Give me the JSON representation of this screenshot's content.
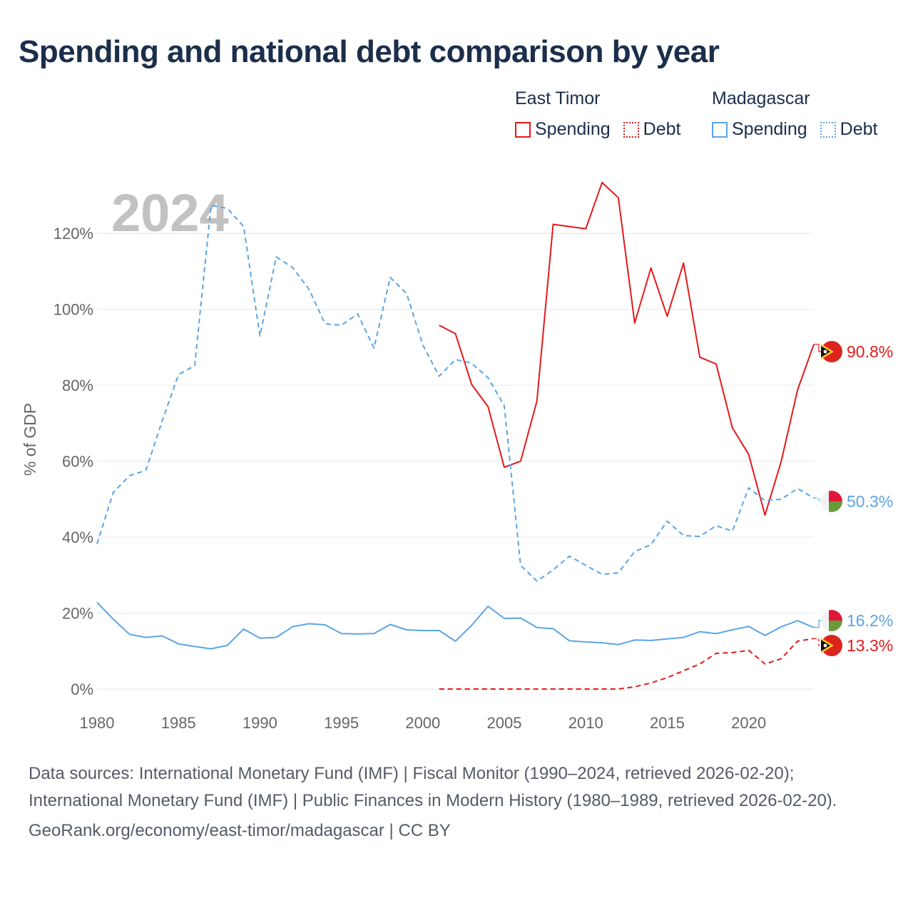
{
  "title": "Spending and national debt comparison by year",
  "legend": {
    "groups": [
      {
        "country": "East Timor",
        "items": [
          "Spending",
          "Debt"
        ]
      },
      {
        "country": "Madagascar",
        "items": [
          "Spending",
          "Debt"
        ]
      }
    ]
  },
  "colors": {
    "east_timor": "#e31a1c",
    "madagascar": "#5aa5e6",
    "grid": "#e6e6e6",
    "axis_text": "#666666",
    "year_watermark": "#c2c2c2"
  },
  "footer": {
    "sources": "Data sources: International Monetary Fund (IMF) | Fiscal Monitor (1990–2024, retrieved 2026-02-20); International Monetary Fund (IMF) | Public Finances in Modern History (1980–1989, retrieved 2026-02-20).",
    "credit": "GeoRank.org/economy/east-timor/madagascar | CC BY"
  },
  "chart_data": {
    "type": "line",
    "year_label": "2024",
    "ylabel": "% of GDP",
    "xlabel": "",
    "xlim": [
      1980,
      2024
    ],
    "ylim": [
      0,
      130
    ],
    "x_ticks": [
      1980,
      1985,
      1990,
      1995,
      2000,
      2005,
      2010,
      2015,
      2020
    ],
    "y_ticks": [
      0,
      20,
      40,
      60,
      80,
      100,
      120
    ],
    "y_tick_labels": [
      "0%",
      "20%",
      "40%",
      "60%",
      "80%",
      "100%",
      "120%"
    ],
    "series": [
      {
        "name": "East Timor Spending",
        "country": "East Timor",
        "style": "solid",
        "color": "#e31a1c",
        "end_label": "90.8%",
        "x": [
          2001,
          2002,
          2003,
          2004,
          2005,
          2006,
          2007,
          2008,
          2009,
          2010,
          2011,
          2012,
          2013,
          2014,
          2015,
          2016,
          2017,
          2018,
          2019,
          2020,
          2021,
          2022,
          2023,
          2024
        ],
        "values": [
          95.8,
          93.6,
          80.2,
          74.4,
          58.4,
          60.0,
          75.8,
          122.4,
          121.8,
          121.2,
          133.4,
          129.4,
          96.4,
          110.9,
          98.2,
          112.2,
          87.4,
          85.6,
          68.8,
          61.8,
          45.8,
          60.0,
          78.8,
          90.8
        ]
      },
      {
        "name": "East Timor Debt",
        "country": "East Timor",
        "style": "dashed",
        "color": "#e31a1c",
        "end_label": "13.3%",
        "x": [
          2001,
          2002,
          2003,
          2004,
          2005,
          2006,
          2007,
          2008,
          2009,
          2010,
          2011,
          2012,
          2013,
          2014,
          2015,
          2016,
          2017,
          2018,
          2019,
          2020,
          2021,
          2022,
          2023,
          2024
        ],
        "values": [
          0,
          0,
          0,
          0,
          0,
          0,
          0,
          0,
          0,
          0,
          0,
          0,
          0.6,
          1.6,
          3.0,
          4.8,
          6.6,
          9.4,
          9.6,
          10.2,
          6.6,
          8.0,
          12.6,
          13.3
        ]
      },
      {
        "name": "Madagascar Spending",
        "country": "Madagascar",
        "style": "solid",
        "color": "#5aa5e6",
        "end_label": "16.2%",
        "x": [
          1980,
          1981,
          1982,
          1983,
          1984,
          1985,
          1986,
          1987,
          1988,
          1989,
          1990,
          1991,
          1992,
          1993,
          1994,
          1995,
          1996,
          1997,
          1998,
          1999,
          2000,
          2001,
          2002,
          2003,
          2004,
          2005,
          2006,
          2007,
          2008,
          2009,
          2010,
          2011,
          2012,
          2013,
          2014,
          2015,
          2016,
          2017,
          2018,
          2019,
          2020,
          2021,
          2022,
          2023,
          2024
        ],
        "values": [
          22.8,
          18.4,
          14.4,
          13.6,
          14.0,
          11.9,
          11.2,
          10.6,
          11.5,
          15.8,
          13.4,
          13.6,
          16.4,
          17.2,
          16.9,
          14.6,
          14.5,
          14.6,
          17.0,
          15.6,
          15.4,
          15.4,
          12.6,
          16.8,
          21.8,
          18.6,
          18.7,
          16.2,
          15.9,
          12.7,
          12.4,
          12.2,
          11.7,
          12.9,
          12.8,
          13.2,
          13.6,
          15.1,
          14.6,
          15.6,
          16.5,
          14.1,
          16.4,
          18.0,
          16.2
        ]
      },
      {
        "name": "Madagascar Debt",
        "country": "Madagascar",
        "style": "dashed",
        "color": "#5aa5e6",
        "end_label": "50.3%",
        "x": [
          1980,
          1981,
          1982,
          1983,
          1984,
          1985,
          1986,
          1987,
          1988,
          1989,
          1990,
          1991,
          1992,
          1993,
          1994,
          1995,
          1996,
          1997,
          1998,
          1999,
          2000,
          2001,
          2002,
          2003,
          2004,
          2005,
          2006,
          2007,
          2008,
          2009,
          2010,
          2011,
          2012,
          2013,
          2014,
          2015,
          2016,
          2017,
          2018,
          2019,
          2020,
          2021,
          2022,
          2023,
          2024
        ],
        "values": [
          38.2,
          51.8,
          56.2,
          57.6,
          70.6,
          82.8,
          85.2,
          127.4,
          126.6,
          121.8,
          93.0,
          113.8,
          111.0,
          105.4,
          96.2,
          95.8,
          98.8,
          89.8,
          108.4,
          104.2,
          90.6,
          82.4,
          86.8,
          85.8,
          82.0,
          74.6,
          32.6,
          28.4,
          31.4,
          35.0,
          32.6,
          30.2,
          30.6,
          36.2,
          38.0,
          44.2,
          40.4,
          40.2,
          43.0,
          41.6,
          53.0,
          49.6,
          50.0,
          52.8,
          50.3
        ]
      }
    ]
  }
}
